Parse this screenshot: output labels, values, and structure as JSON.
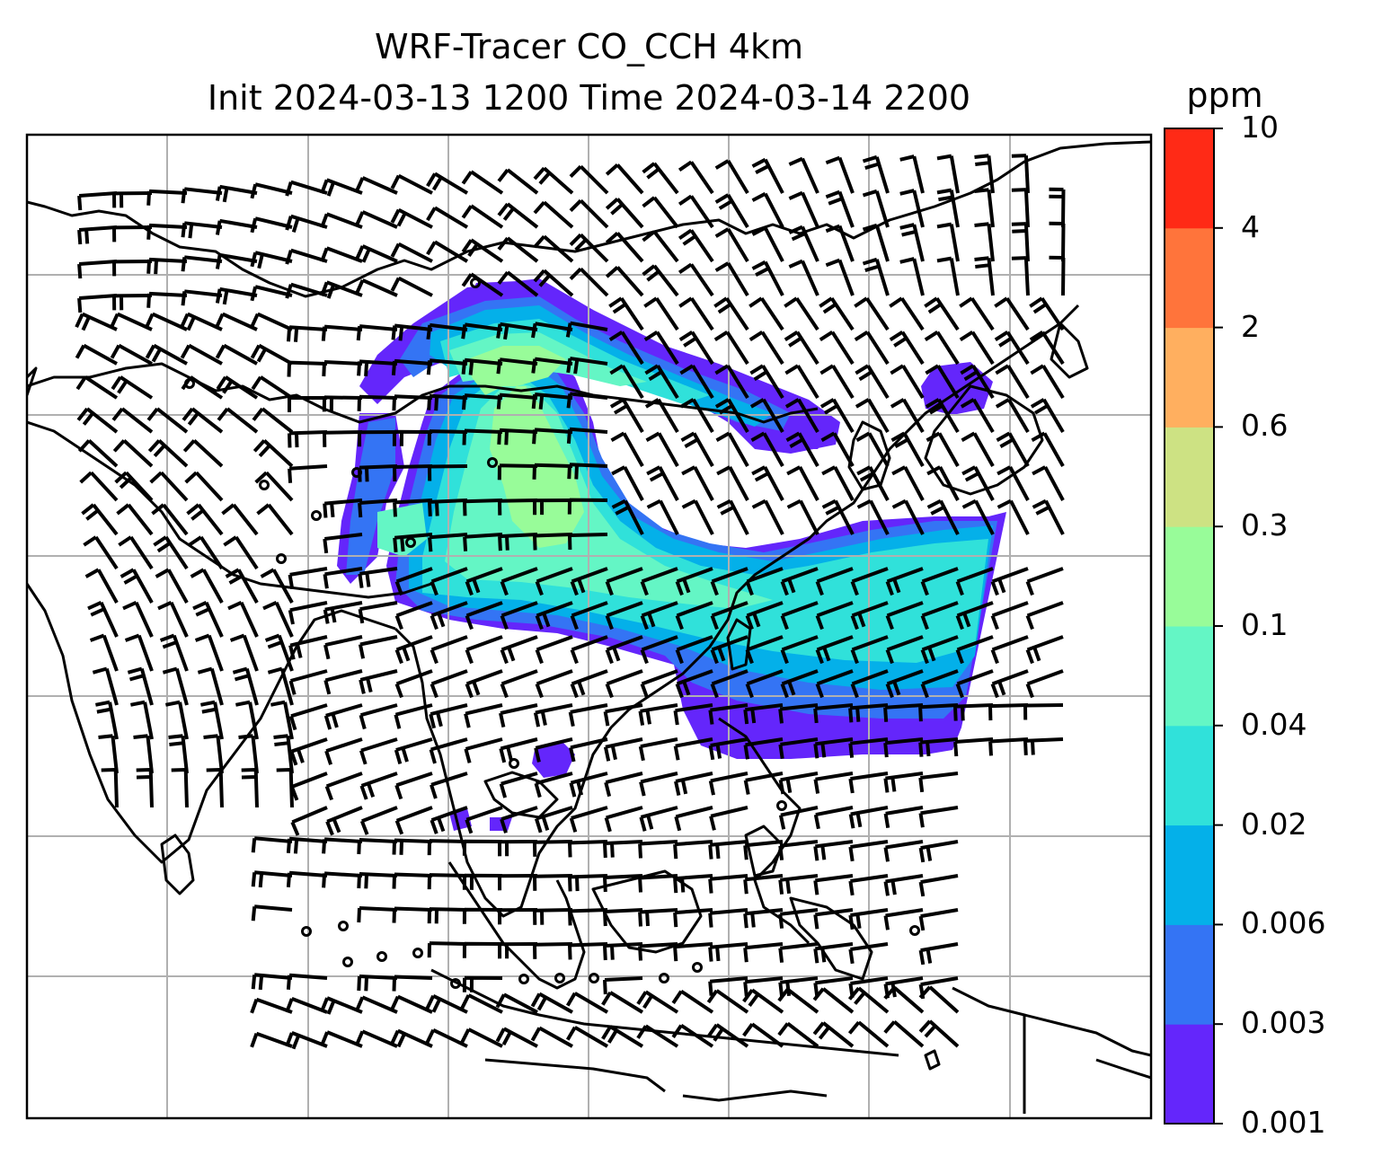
{
  "title": {
    "line1": "WRF-Tracer CO_CCH 4km",
    "line2": "Init 2024-03-13 1200 Time 2024-03-14 2200"
  },
  "colorbar": {
    "unit": "ppm",
    "levels": [
      "0.001",
      "0.003",
      "0.006",
      "0.02",
      "0.04",
      "0.1",
      "0.3",
      "0.6",
      "2",
      "4",
      "10"
    ],
    "colors": [
      "#6426fb",
      "#3474f4",
      "#04b0e9",
      "#30e1da",
      "#64f6c5",
      "#98fc99",
      "#cde283",
      "#ffaf5f",
      "#ff743b",
      "#ff2a16"
    ]
  },
  "map": {
    "background": "#ffffff",
    "coastline_color": "#000000",
    "gridline_color": "#b0b0b0",
    "wind_barb_color": "#000000"
  }
}
